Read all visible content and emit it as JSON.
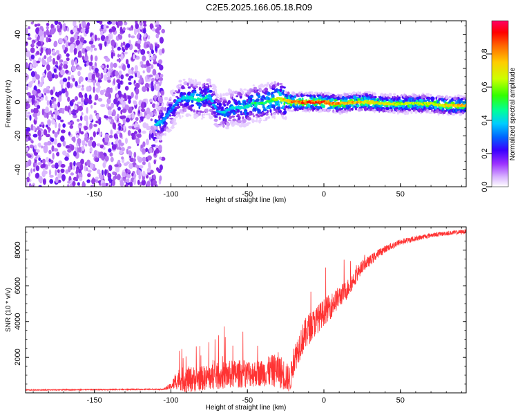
{
  "title": "C2E5.2025.166.05.18.R09",
  "chart_data": [
    {
      "type": "heatmap",
      "xlabel": "Height of straight line (km)",
      "ylabel": "Frequency (Hz)",
      "xlim": [
        -195,
        93
      ],
      "ylim": [
        -50,
        48
      ],
      "xticks": [
        -150,
        -100,
        -50,
        0,
        50
      ],
      "yticks": [
        -40,
        -20,
        0,
        20,
        40
      ],
      "colorbar": {
        "label": "Normalized spectral amplitude",
        "range": [
          0,
          1
        ],
        "ticks": [
          0.0,
          0.2,
          0.4,
          0.6,
          0.8
        ],
        "colors": [
          "#ffffff",
          "#d9b3ff",
          "#8a2be2",
          "#3a00ff",
          "#0066ff",
          "#00ccff",
          "#00ff99",
          "#33ff00",
          "#ccff00",
          "#ffcc00",
          "#ff6600",
          "#ff0000",
          "#ff0066"
        ]
      },
      "noise_region_x": [
        -195,
        -105
      ],
      "signal_trace": {
        "x": [
          -110,
          -105,
          -100,
          -95,
          -90,
          -85,
          -80,
          -75,
          -70,
          -65,
          -60,
          -55,
          -50,
          -45,
          -40,
          -35,
          -30,
          -25,
          -20,
          -10,
          0,
          10,
          20,
          30,
          40,
          50,
          60,
          70,
          80,
          90
        ],
        "freq": [
          -13,
          -11,
          -5,
          1,
          3,
          2,
          1,
          4,
          -5,
          -6,
          -3,
          -3,
          -3,
          0,
          -1,
          1,
          2,
          1,
          0,
          0,
          0,
          -1,
          0,
          0,
          -1,
          -1,
          -1,
          -1,
          -2,
          -2
        ],
        "amplitude": [
          0.45,
          0.4,
          0.35,
          0.4,
          0.45,
          0.5,
          0.55,
          0.45,
          0.4,
          0.45,
          0.45,
          0.5,
          0.5,
          0.55,
          0.55,
          0.6,
          0.7,
          0.8,
          0.85,
          0.9,
          0.9,
          0.85,
          0.8,
          0.75,
          0.75,
          0.7,
          0.7,
          0.7,
          0.75,
          0.8
        ]
      }
    },
    {
      "type": "line",
      "xlabel": "Height of straight line (km)",
      "ylabel": "SNR (10 * v/v)",
      "xlim": [
        -195,
        93
      ],
      "ylim": [
        0,
        9300
      ],
      "xticks": [
        -150,
        -100,
        -50,
        0,
        50
      ],
      "yticks": [
        2000,
        4000,
        6000,
        8000
      ],
      "color": "#ff3333",
      "envelope": {
        "x": [
          -195,
          -150,
          -105,
          -100,
          -95,
          -90,
          -80,
          -60,
          -40,
          -30,
          -22,
          -20,
          -15,
          -10,
          -5,
          0,
          5,
          10,
          15,
          20,
          25,
          30,
          35,
          40,
          45,
          50,
          60,
          70,
          80,
          93
        ],
        "base": [
          150,
          170,
          190,
          300,
          600,
          500,
          600,
          800,
          900,
          1000,
          500,
          1500,
          2600,
          3300,
          3800,
          4300,
          4700,
          5200,
          5600,
          6300,
          7000,
          7300,
          7700,
          8000,
          8200,
          8400,
          8600,
          8800,
          8900,
          9000
        ],
        "spread": [
          60,
          60,
          70,
          400,
          1200,
          1500,
          1400,
          1600,
          1500,
          2000,
          1500,
          1600,
          1800,
          1800,
          1600,
          1500,
          1400,
          1200,
          1100,
          900,
          700,
          600,
          500,
          400,
          400,
          350,
          300,
          250,
          250,
          250
        ]
      }
    }
  ]
}
